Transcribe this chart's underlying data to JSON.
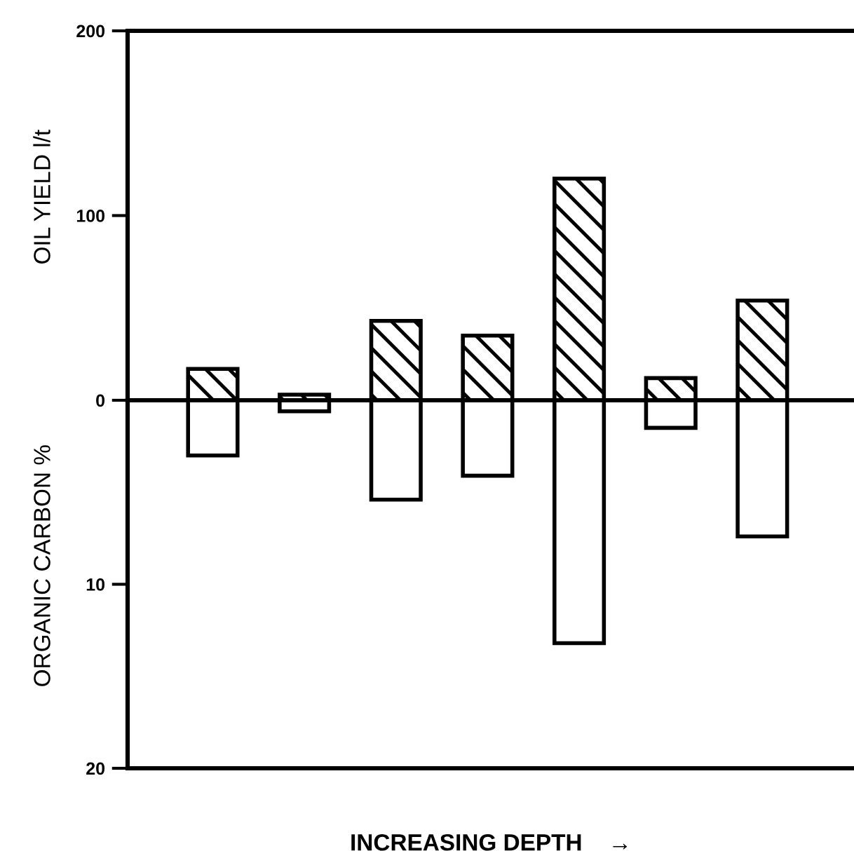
{
  "chart_data": [
    {
      "type": "bar",
      "ylabel": "OIL YIELD l/t",
      "categories": [
        null,
        null,
        null,
        null,
        null,
        null,
        null
      ],
      "series": [
        {
          "color": "#000000",
          "values": [
            17,
            3,
            43,
            35,
            120,
            12,
            54
          ]
        }
      ],
      "ylim": [
        0,
        200
      ],
      "yticks": [
        200,
        100,
        0
      ],
      "grid": false
    },
    {
      "type": "bar",
      "xlabel": "INCREASING DEPTH    →",
      "ylabel": "ORGANIC CARBON %",
      "categories": [
        null,
        null,
        null,
        null,
        null,
        null,
        null
      ],
      "series": [
        {
          "color": "#000000",
          "values": [
            3.0,
            0.6,
            5.4,
            4.1,
            13.2,
            1.5,
            7.4
          ]
        }
      ],
      "ylim": [
        20,
        0
      ],
      "yticks": [
        10,
        20
      ],
      "grid": false
    }
  ]
}
